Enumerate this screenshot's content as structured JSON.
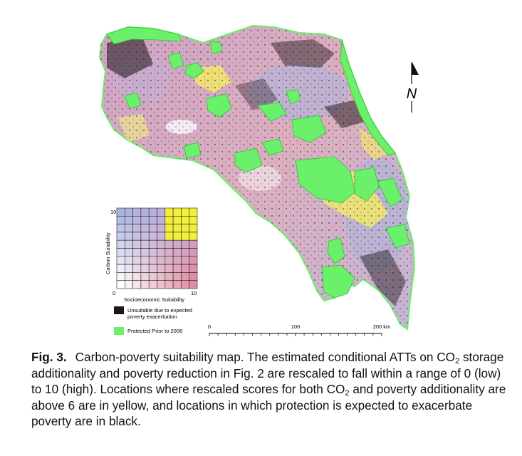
{
  "map": {
    "north_label": "N",
    "colors": {
      "protected": "#6af06a",
      "protected_edge": "#3fb83f",
      "base_pink": "#d9a9bf",
      "base_lavender": "#b9b3d6",
      "yellow_high": "#f2e96a",
      "unsuitable": "#1c1416"
    }
  },
  "legend": {
    "y_axis_label": "Carbon Suitability",
    "x_axis_label": "Socioeconomic Suitability",
    "y_max": "10",
    "x_max": "10",
    "origin": "0",
    "grid_size": 10,
    "threshold": 6,
    "items": [
      {
        "label_line1": "Unsuitable due to expected",
        "label_line2": "poverty exacerbation",
        "color": "#1c1416"
      },
      {
        "label_line1": "Protected Prior to 2008",
        "label_line2": "",
        "color": "#6af06a"
      }
    ]
  },
  "scale_bar": {
    "ticks": [
      "0",
      "100",
      "200 km"
    ]
  },
  "caption": {
    "lead": "Fig. 3.",
    "text_1": "Carbon-poverty suitability map. The estimated conditional ATTs on CO",
    "sub_1": "2",
    "text_2": " storage additionality and poverty reduction in Fig. 2 are rescaled to fall within a range of 0 (low) to 10 (high). Locations where rescaled scores for both CO",
    "sub_2": "2",
    "text_3": " and poverty additionality are above 6 are in yellow, and locations in which protection is expected to exacerbate poverty are in black."
  }
}
